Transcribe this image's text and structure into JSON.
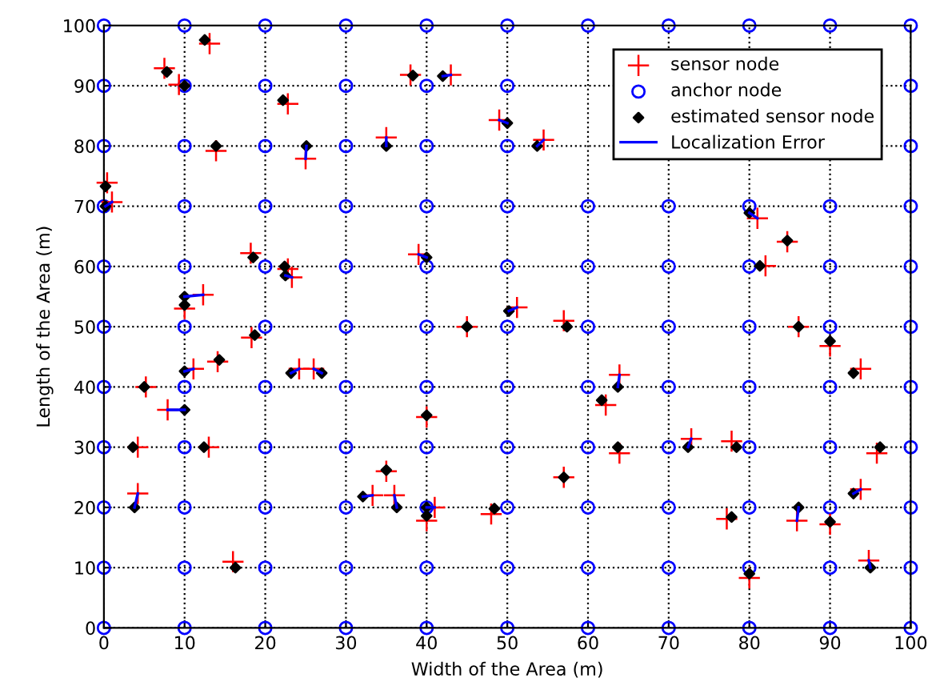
{
  "chart_data": {
    "type": "scatter",
    "xlabel": "Width of the Area (m)",
    "ylabel": "Length of the Area (m)",
    "xlim": [
      0,
      100
    ],
    "ylim": [
      0,
      100
    ],
    "xticks": [
      0,
      10,
      20,
      30,
      40,
      50,
      60,
      70,
      80,
      90,
      100
    ],
    "yticks": [
      0,
      10,
      20,
      30,
      40,
      50,
      60,
      70,
      80,
      90,
      100
    ],
    "grid": true,
    "legend": "top right",
    "series": [
      {
        "name": "sensor node",
        "marker": "cross",
        "color": "#ff0000",
        "x": [
          7.5,
          13.1,
          9.3,
          22.8,
          38,
          43,
          13.9,
          25,
          35,
          0.4,
          1,
          49,
          54.5,
          18.2,
          22.8,
          23.3,
          39,
          12.3,
          10,
          51.2,
          18.3,
          45,
          11.1,
          14.1,
          24.2,
          26,
          5.2,
          7.9,
          40,
          4.2,
          13,
          35,
          4.2,
          33.3,
          36,
          41,
          40,
          48,
          16,
          57,
          86.1,
          90,
          93.8,
          63.9,
          62.2,
          63.9,
          72.8,
          77.8,
          95.8,
          57,
          93.8,
          85.9,
          90,
          77.2,
          94.8,
          80,
          81,
          84.7,
          82
        ],
        "values": [
          92.9,
          97,
          90.2,
          87,
          91.8,
          91.8,
          79.2,
          77.9,
          81.4,
          73.9,
          70.7,
          84.3,
          81,
          62.2,
          59.6,
          58.2,
          62,
          55.3,
          53,
          53.2,
          48.2,
          50,
          43,
          44.2,
          43,
          43,
          40,
          36.2,
          35,
          30,
          30,
          26,
          22.3,
          22,
          22,
          20,
          17.8,
          18.9,
          11,
          51,
          50,
          46.8,
          43,
          42,
          37,
          29,
          31.4,
          31,
          29,
          25,
          23,
          17.8,
          17.2,
          18.1,
          11.2,
          8.3,
          68,
          64.1,
          60.1
        ]
      },
      {
        "name": "anchor node",
        "marker": "circle",
        "color": "#0000ff",
        "x": [
          0,
          0,
          0,
          0,
          0,
          0,
          0,
          0,
          0,
          0,
          0,
          10,
          10,
          10,
          10,
          10,
          10,
          10,
          10,
          10,
          10,
          10,
          20,
          20,
          20,
          20,
          20,
          20,
          20,
          20,
          20,
          20,
          20,
          30,
          30,
          30,
          30,
          30,
          30,
          30,
          30,
          30,
          30,
          30,
          40,
          40,
          40,
          40,
          40,
          40,
          40,
          40,
          40,
          40,
          40,
          50,
          50,
          50,
          50,
          50,
          50,
          50,
          50,
          50,
          50,
          50,
          60,
          60,
          60,
          60,
          60,
          60,
          60,
          60,
          60,
          70,
          70,
          70,
          70,
          70,
          70,
          70,
          70,
          70,
          80,
          80,
          80,
          80,
          80,
          80,
          80,
          80,
          80,
          90,
          90,
          90,
          90,
          90,
          90,
          90,
          90,
          90,
          100,
          100,
          100,
          100,
          100,
          100,
          100,
          100,
          100,
          100,
          100
        ],
        "values": [
          0,
          10,
          20,
          30,
          40,
          50,
          60,
          70,
          80,
          90,
          100,
          0,
          10,
          20,
          30,
          40,
          50,
          60,
          70,
          80,
          90,
          100,
          0,
          10,
          20,
          30,
          40,
          50,
          60,
          70,
          80,
          90,
          100,
          0,
          10,
          20,
          30,
          40,
          50,
          60,
          70,
          80,
          90,
          100,
          0,
          10,
          20,
          30,
          40,
          50,
          60,
          70,
          80,
          90,
          100,
          0,
          10,
          20,
          30,
          40,
          50,
          60,
          70,
          80,
          90,
          100,
          0,
          10,
          20,
          30,
          40,
          50,
          60,
          70,
          100,
          0,
          10,
          20,
          30,
          40,
          50,
          60,
          70,
          100,
          0,
          10,
          20,
          30,
          40,
          50,
          60,
          70,
          100,
          0,
          10,
          20,
          30,
          40,
          50,
          60,
          70,
          100,
          0,
          10,
          20,
          30,
          40,
          50,
          60,
          70,
          80,
          90,
          100
        ]
      },
      {
        "name": "estimated sensor node",
        "marker": "diamond",
        "color": "#000000",
        "x": [
          7.8,
          12.5,
          10,
          22.2,
          38.3,
          42,
          13.9,
          25.1,
          35,
          0.2,
          0.2,
          50,
          53.7,
          18.5,
          22.4,
          22.5,
          40,
          10,
          10,
          50.2,
          18.7,
          45,
          10,
          14.3,
          23.2,
          27,
          5,
          10,
          40,
          3.6,
          12.4,
          35,
          3.8,
          32.1,
          36.3,
          40,
          40,
          48.4,
          16.3,
          57.4,
          86.1,
          90,
          92.9,
          63.7,
          61.7,
          63.7,
          72.4,
          78.4,
          96.2,
          57,
          92.9,
          86.1,
          90,
          77.8,
          95,
          80,
          80,
          84.7,
          81.3
        ],
        "values": [
          92.3,
          97.6,
          90,
          87.6,
          91.7,
          91.6,
          80,
          80,
          80,
          73.3,
          70,
          83.8,
          80,
          61.5,
          60,
          58.5,
          61.5,
          55,
          53.6,
          52.6,
          48.6,
          50,
          42.6,
          44.5,
          42.3,
          42.3,
          40,
          36.2,
          35.3,
          30,
          30,
          26.2,
          20,
          21.8,
          20,
          20,
          18.6,
          19.8,
          10,
          50,
          50,
          47.6,
          42.3,
          40,
          37.8,
          30,
          30,
          30,
          30,
          25,
          22.3,
          20,
          17.6,
          18.4,
          10,
          9,
          68.9,
          64.3,
          60.1
        ]
      },
      {
        "name": "Localization Error",
        "type": "line",
        "marker": "none",
        "line_style": "solid",
        "color": "#0000ff",
        "x": [
          43,
          42,
          null,
          25,
          25.1,
          null,
          35,
          35,
          null,
          1,
          0.2,
          null,
          49,
          50,
          null,
          54.5,
          53.7,
          null,
          23.3,
          22.5,
          null,
          39,
          40,
          null,
          12.3,
          10,
          null,
          51.2,
          50.2,
          null,
          11.1,
          10,
          null,
          24.2,
          23.2,
          null,
          26,
          27,
          null,
          7.9,
          10,
          null,
          4.2,
          3.8,
          null,
          33.3,
          32.1,
          null,
          36,
          36.3,
          null,
          41,
          40,
          null,
          63.9,
          63.7,
          null,
          72.8,
          72.4,
          null,
          93.8,
          92.9,
          null,
          85.9,
          86.1,
          null,
          94.8,
          95,
          null,
          81,
          80
        ],
        "values": [
          91.8,
          91.6,
          null,
          77.9,
          80,
          null,
          81.4,
          80,
          null,
          70.7,
          70,
          null,
          84.3,
          83.8,
          null,
          81,
          80,
          null,
          58.2,
          58.5,
          null,
          62,
          61.5,
          null,
          55.3,
          55,
          null,
          53.2,
          52.6,
          null,
          43,
          42.6,
          null,
          43,
          42.3,
          null,
          43,
          42.3,
          null,
          36.2,
          36.2,
          null,
          22.3,
          20,
          null,
          22,
          21.8,
          null,
          22,
          20,
          null,
          20,
          20,
          null,
          42,
          40,
          null,
          31.4,
          30,
          null,
          23,
          22.3,
          null,
          17.8,
          20,
          null,
          11.2,
          10,
          null,
          68,
          68.9
        ]
      }
    ]
  }
}
